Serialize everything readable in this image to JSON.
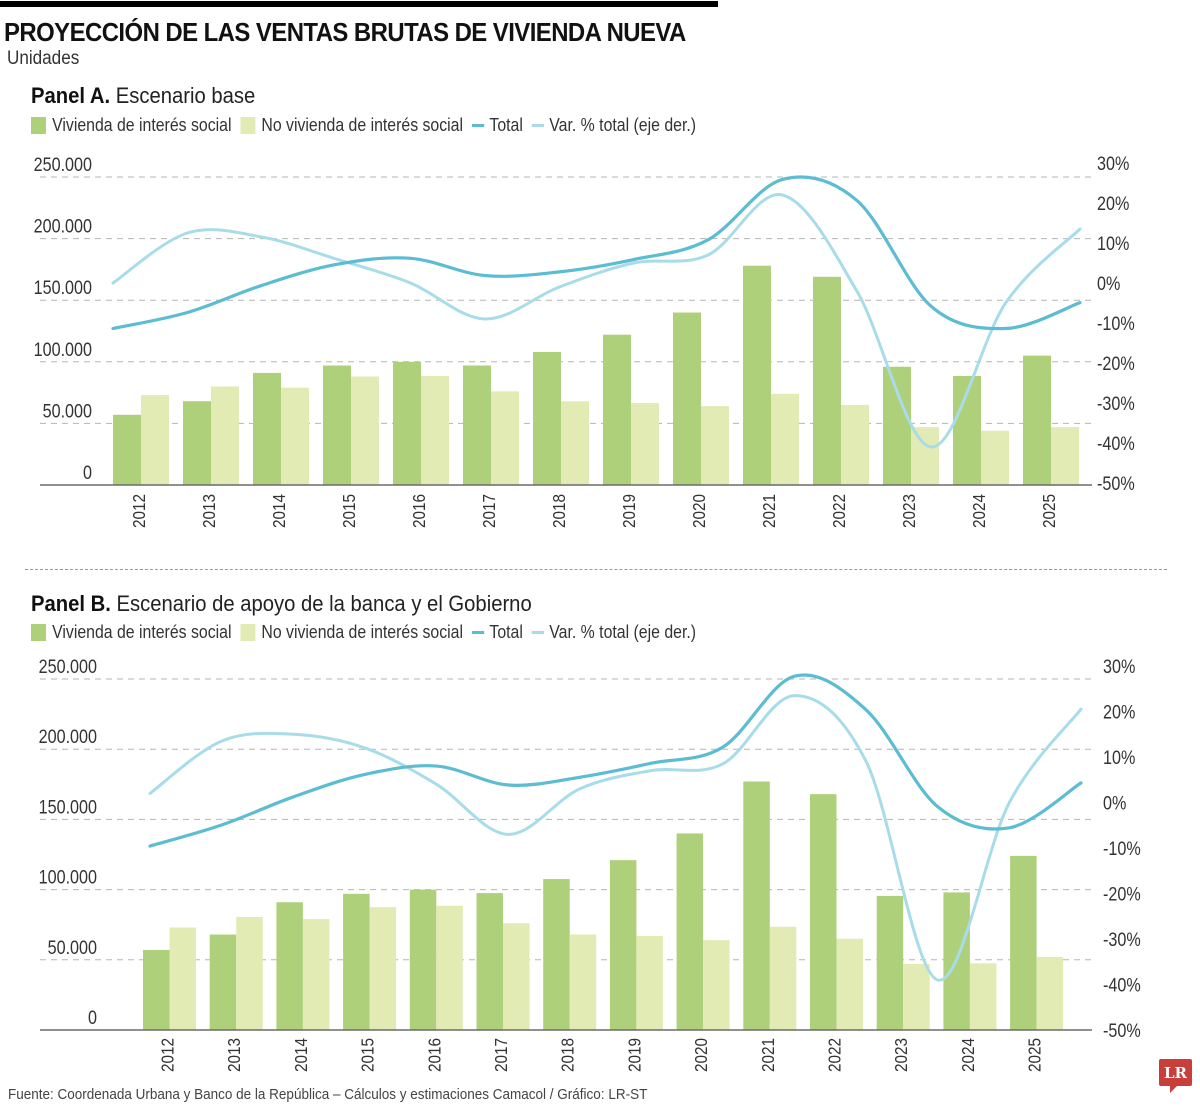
{
  "header": {
    "title": "PROYECCIÓN DE LAS VENTAS BRUTAS DE VIVIENDA NUEVA",
    "subtitle": "Unidades"
  },
  "colors": {
    "vis": "#aed07b",
    "no_vis": "#e2ebb4",
    "total": "#5bbcd2",
    "var_pct": "#a8dce8",
    "grid": "#b5b5b5",
    "baseline": "#6b6b6b",
    "logo": "#c73e3a"
  },
  "legend": {
    "vis": "Vivienda de interés social",
    "no_vis": "No vivienda de interés social",
    "total": "Total",
    "var_pct": "Var. % total (eje der.)"
  },
  "footer": {
    "source": "Fuente: Coordenada Urbana y Banco de la República – Cálculos y estimaciones Camacol / Gráfico: LR-ST",
    "logo_text": "LR"
  },
  "chart_data": [
    {
      "type": "bar",
      "panel_label": "Panel A.",
      "title": "Escenario base",
      "categories": [
        "2012",
        "2013",
        "2014",
        "2015",
        "2016",
        "2017",
        "2018",
        "2019",
        "2020",
        "2021",
        "2022",
        "2023",
        "2024",
        "2025"
      ],
      "y_left": {
        "label": "Unidades",
        "range": [
          0,
          250000
        ],
        "ticks": [
          0,
          50000,
          100000,
          150000,
          200000,
          250000
        ],
        "tick_labels": [
          "0",
          "50.000",
          "100.000",
          "150.000",
          "200.000",
          "250.000"
        ]
      },
      "y_right": {
        "label": "Var. % total",
        "range": [
          -50,
          30
        ],
        "ticks": [
          -50,
          -40,
          -30,
          -20,
          -10,
          0,
          10,
          20,
          30
        ],
        "tick_labels": [
          "-50%",
          "-40%",
          "-30%",
          "-20%",
          "-10%",
          "0%",
          "10%",
          "20%",
          "30%"
        ]
      },
      "grid": true,
      "legend_position": "top-left",
      "series": [
        {
          "name": "Vivienda de interés social",
          "kind": "bar",
          "axis": "left",
          "values": [
            57000,
            68000,
            91000,
            97000,
            100000,
            97000,
            108000,
            122000,
            140000,
            178000,
            169000,
            96000,
            88500,
            105000
          ]
        },
        {
          "name": "No vivienda de interés social",
          "kind": "bar",
          "axis": "left",
          "values": [
            73000,
            80000,
            79000,
            88000,
            88500,
            76000,
            68000,
            66500,
            64000,
            74000,
            65000,
            47000,
            44000,
            47000
          ]
        },
        {
          "name": "Total",
          "kind": "line",
          "axis": "left",
          "values": [
            127000,
            140000,
            162000,
            179000,
            184000,
            170000,
            173000,
            183000,
            199000,
            248000,
            231000,
            145000,
            127000,
            148000
          ]
        },
        {
          "name": "Var. % total (eje der.)",
          "kind": "line",
          "axis": "right",
          "values": [
            0,
            12.5,
            11.5,
            6,
            0,
            -9,
            -1,
            5,
            7,
            22,
            -2,
            -41,
            -5,
            13.5
          ]
        }
      ]
    },
    {
      "type": "bar",
      "panel_label": "Panel B.",
      "title": "Escenario de apoyo de la banca y el Gobierno",
      "categories": [
        "2012",
        "2013",
        "2014",
        "2015",
        "2016",
        "2017",
        "2018",
        "2019",
        "2020",
        "2021",
        "2022",
        "2023",
        "2024",
        "2025"
      ],
      "y_left": {
        "label": "Unidades",
        "range": [
          0,
          250000
        ],
        "ticks": [
          0,
          50000,
          100000,
          150000,
          200000,
          250000
        ],
        "tick_labels": [
          "0",
          "50.000",
          "100.000",
          "150.000",
          "200.000",
          "250.000"
        ]
      },
      "y_right": {
        "label": "Var. % total",
        "range": [
          -50,
          30
        ],
        "ticks": [
          -50,
          -40,
          -30,
          -20,
          -10,
          0,
          10,
          20,
          30
        ],
        "tick_labels": [
          "-50%",
          "-40%",
          "-30%",
          "-20%",
          "-10%",
          "0%",
          "10%",
          "20%",
          "30%"
        ]
      },
      "grid": true,
      "legend_position": "top-left",
      "series": [
        {
          "name": "Vivienda de interés social",
          "kind": "bar",
          "axis": "left",
          "values": [
            57000,
            68000,
            91000,
            97000,
            100000,
            97500,
            107500,
            121000,
            140000,
            177000,
            168000,
            95500,
            98000,
            124000
          ]
        },
        {
          "name": "No vivienda de interés social",
          "kind": "bar",
          "axis": "left",
          "values": [
            73000,
            80500,
            79000,
            87500,
            88500,
            76000,
            68000,
            67000,
            64000,
            73500,
            65000,
            47000,
            47500,
            52000
          ]
        },
        {
          "name": "Total",
          "kind": "line",
          "axis": "left",
          "values": [
            131000,
            146000,
            166000,
            182000,
            188000,
            174500,
            180000,
            190000,
            201500,
            252000,
            228000,
            159000,
            144000,
            176000
          ]
        },
        {
          "name": "Var. % total (eje der.)",
          "kind": "line",
          "axis": "right",
          "values": [
            2,
            13.5,
            15,
            12,
            4,
            -7,
            3,
            7,
            8.5,
            23.5,
            9,
            -39,
            0,
            20.5
          ]
        }
      ]
    }
  ]
}
